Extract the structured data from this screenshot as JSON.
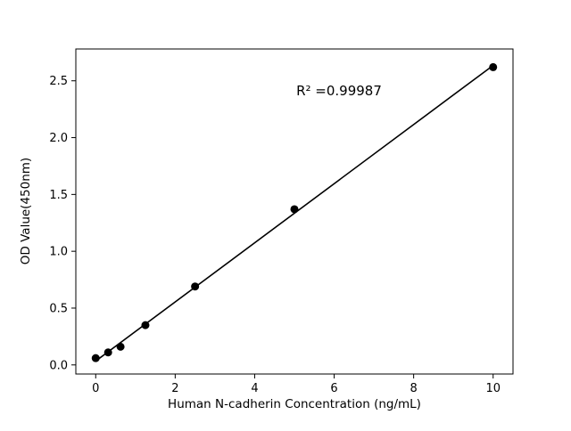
{
  "chart_data": {
    "type": "scatter",
    "title": "",
    "xlabel": "Human N-cadherin Concentration (ng/mL)",
    "ylabel": "OD Value(450nm)",
    "annotation": "R² =0.99987",
    "x": [
      0,
      0.3125,
      0.625,
      1.25,
      2.5,
      5,
      10
    ],
    "y": [
      0.06,
      0.11,
      0.16,
      0.35,
      0.69,
      1.37,
      2.62
    ],
    "xticks": [
      "0",
      "2",
      "4",
      "6",
      "8",
      "10"
    ],
    "yticks": [
      "0.0",
      "0.5",
      "1.0",
      "1.5",
      "2.0",
      "2.5"
    ],
    "xlim": [
      -0.5,
      10.5
    ],
    "ylim": [
      -0.08,
      2.78
    ],
    "marker_color": "#000000",
    "line_color": "#000000",
    "fit_line": true,
    "grid": false,
    "legend_position": "none"
  }
}
